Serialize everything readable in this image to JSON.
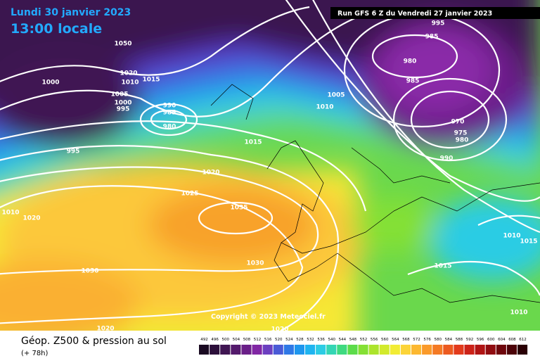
{
  "header": {
    "date": "Lundi 30 janvier 2023",
    "time": "13:00 locale",
    "run": "Run GFS 6 Z du Vendredi 27 janvier 2023"
  },
  "copyright": "Copyright © 2023 Meteociel.fr",
  "footer": {
    "title": "Géop. Z500 & pression au sol",
    "lead": "(+ 78h)"
  },
  "isobar_labels": [
    "1050",
    "1000",
    "1005",
    "1000",
    "995",
    "1015",
    "1020",
    "1010",
    "990",
    "985",
    "980",
    "995",
    "1015",
    "1020",
    "1025",
    "1035",
    "1030",
    "1030",
    "1020",
    "1020",
    "1005",
    "1010",
    "995",
    "985",
    "980",
    "985",
    "970",
    "975",
    "980",
    "990",
    "1010",
    "1015",
    "1015",
    "1010",
    "1020",
    "1010"
  ],
  "scale": {
    "values": [
      492,
      496,
      500,
      504,
      508,
      512,
      516,
      520,
      524,
      528,
      532,
      536,
      540,
      544,
      548,
      552,
      556,
      560,
      564,
      568,
      572,
      576,
      580,
      584,
      588,
      592,
      596,
      600,
      604,
      608,
      612
    ],
    "colors": [
      "#1a0a22",
      "#2c0f3a",
      "#3f1552",
      "#541a6c",
      "#6a1f88",
      "#8127a4",
      "#6c3fc0",
      "#4a5ad6",
      "#2f78e6",
      "#1e96ee",
      "#1fb4f0",
      "#2ccce4",
      "#34d6b4",
      "#3fda80",
      "#5cdc4a",
      "#84e034",
      "#ace42c",
      "#d2ea2c",
      "#f2ec34",
      "#fcd438",
      "#fcb830",
      "#fa9a2a",
      "#f47a24",
      "#ec5a20",
      "#e23a1c",
      "#cc2218",
      "#b01414",
      "#900c10",
      "#6e060c",
      "#4c0208",
      "#2a0004"
    ]
  }
}
